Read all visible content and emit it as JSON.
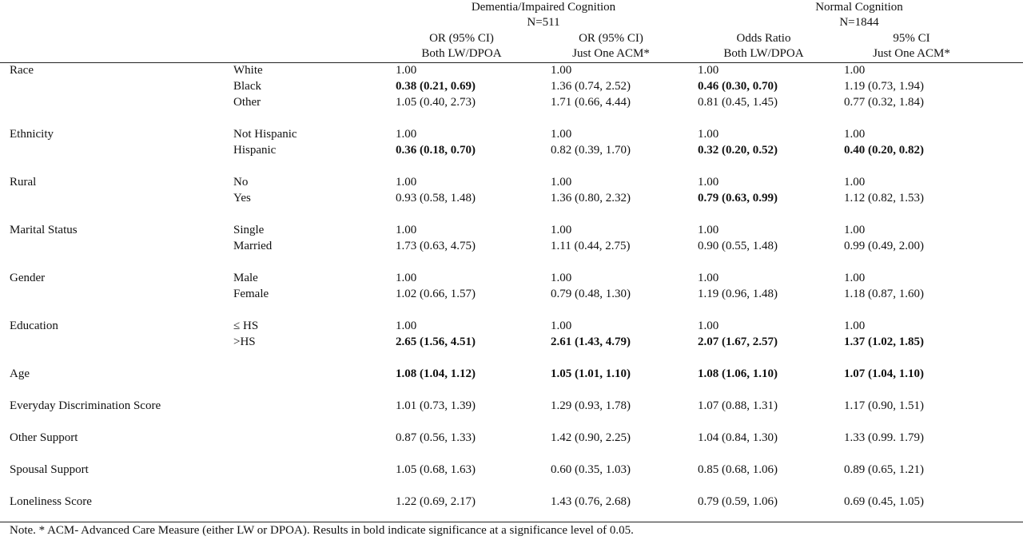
{
  "groups": [
    {
      "title": "Dementia/Impaired Cognition",
      "n": "N=511"
    },
    {
      "title": "Normal Cognition",
      "n": "N=1844"
    }
  ],
  "columns": [
    {
      "line1": "OR (95% CI)",
      "line2": "Both LW/DPOA"
    },
    {
      "line1": "OR (95% CI)",
      "line2": "Just One ACM*"
    },
    {
      "line1": "Odds Ratio",
      "line2": "Both LW/DPOA"
    },
    {
      "line1": "95% CI",
      "line2": "Just One ACM*"
    }
  ],
  "variables": [
    {
      "label": "Race",
      "levels": [
        {
          "label": "White",
          "values": [
            {
              "text": "1.00",
              "bold": false
            },
            {
              "text": "1.00",
              "bold": false
            },
            {
              "text": "1.00",
              "bold": false
            },
            {
              "text": "1.00",
              "bold": false
            }
          ]
        },
        {
          "label": "Black",
          "values": [
            {
              "text": "0.38 (0.21, 0.69)",
              "bold": true
            },
            {
              "text": "1.36 (0.74, 2.52)",
              "bold": false
            },
            {
              "text": "0.46 (0.30, 0.70)",
              "bold": true
            },
            {
              "text": "1.19 (0.73, 1.94)",
              "bold": false
            }
          ]
        },
        {
          "label": "Other",
          "values": [
            {
              "text": "1.05 (0.40, 2.73)",
              "bold": false
            },
            {
              "text": "1.71 (0.66, 4.44)",
              "bold": false
            },
            {
              "text": "0.81 (0.45, 1.45)",
              "bold": false
            },
            {
              "text": "0.77 (0.32, 1.84)",
              "bold": false
            }
          ]
        }
      ]
    },
    {
      "label": "Ethnicity",
      "levels": [
        {
          "label": "Not Hispanic",
          "values": [
            {
              "text": "1.00",
              "bold": false
            },
            {
              "text": "1.00",
              "bold": false
            },
            {
              "text": "1.00",
              "bold": false
            },
            {
              "text": "1.00",
              "bold": false
            }
          ]
        },
        {
          "label": "Hispanic",
          "values": [
            {
              "text": "0.36 (0.18, 0.70)",
              "bold": true
            },
            {
              "text": "0.82 (0.39, 1.70)",
              "bold": false
            },
            {
              "text": "0.32 (0.20, 0.52)",
              "bold": true
            },
            {
              "text": "0.40 (0.20, 0.82)",
              "bold": true
            }
          ]
        }
      ]
    },
    {
      "label": "Rural",
      "levels": [
        {
          "label": "No",
          "values": [
            {
              "text": "1.00",
              "bold": false
            },
            {
              "text": "1.00",
              "bold": false
            },
            {
              "text": "1.00",
              "bold": false
            },
            {
              "text": "1.00",
              "bold": false
            }
          ]
        },
        {
          "label": "Yes",
          "values": [
            {
              "text": "0.93 (0.58, 1.48)",
              "bold": false
            },
            {
              "text": "1.36 (0.80, 2.32)",
              "bold": false
            },
            {
              "text": "0.79 (0.63, 0.99)",
              "bold": true
            },
            {
              "text": "1.12 (0.82, 1.53)",
              "bold": false
            }
          ]
        }
      ]
    },
    {
      "label": "Marital Status",
      "levels": [
        {
          "label": "Single",
          "values": [
            {
              "text": "1.00",
              "bold": false
            },
            {
              "text": "1.00",
              "bold": false
            },
            {
              "text": "1.00",
              "bold": false
            },
            {
              "text": "1.00",
              "bold": false
            }
          ]
        },
        {
          "label": "Married",
          "values": [
            {
              "text": "1.73 (0.63, 4.75)",
              "bold": false
            },
            {
              "text": "1.11 (0.44, 2.75)",
              "bold": false
            },
            {
              "text": "0.90 (0.55, 1.48)",
              "bold": false
            },
            {
              "text": "0.99 (0.49, 2.00)",
              "bold": false
            }
          ]
        }
      ]
    },
    {
      "label": "Gender",
      "levels": [
        {
          "label": "Male",
          "values": [
            {
              "text": "1.00",
              "bold": false
            },
            {
              "text": "1.00",
              "bold": false
            },
            {
              "text": "1.00",
              "bold": false
            },
            {
              "text": "1.00",
              "bold": false
            }
          ]
        },
        {
          "label": "Female",
          "values": [
            {
              "text": "1.02 (0.66, 1.57)",
              "bold": false
            },
            {
              "text": "0.79 (0.48, 1.30)",
              "bold": false
            },
            {
              "text": "1.19 (0.96, 1.48)",
              "bold": false
            },
            {
              "text": "1.18 (0.87, 1.60)",
              "bold": false
            }
          ]
        }
      ]
    },
    {
      "label": "Education",
      "levels": [
        {
          "label": "≤ HS",
          "values": [
            {
              "text": "1.00",
              "bold": false
            },
            {
              "text": "1.00",
              "bold": false
            },
            {
              "text": "1.00",
              "bold": false
            },
            {
              "text": "1.00",
              "bold": false
            }
          ]
        },
        {
          "label": ">HS",
          "values": [
            {
              "text": "2.65 (1.56, 4.51)",
              "bold": true
            },
            {
              "text": "2.61 (1.43, 4.79)",
              "bold": true
            },
            {
              "text": "2.07 (1.67, 2.57)",
              "bold": true
            },
            {
              "text": "1.37 (1.02, 1.85)",
              "bold": true
            }
          ]
        }
      ]
    },
    {
      "label": "Age",
      "levels": [
        {
          "label": "",
          "values": [
            {
              "text": "1.08 (1.04, 1.12)",
              "bold": true
            },
            {
              "text": "1.05 (1.01, 1.10)",
              "bold": true
            },
            {
              "text": "1.08 (1.06, 1.10)",
              "bold": true
            },
            {
              "text": "1.07 (1.04, 1.10)",
              "bold": true
            }
          ]
        }
      ]
    },
    {
      "label": "Everyday Discrimination Score",
      "levels": [
        {
          "label": "",
          "values": [
            {
              "text": "1.01 (0.73, 1.39)",
              "bold": false
            },
            {
              "text": "1.29 (0.93, 1.78)",
              "bold": false
            },
            {
              "text": "1.07 (0.88, 1.31)",
              "bold": false
            },
            {
              "text": "1.17 (0.90, 1.51)",
              "bold": false
            }
          ]
        }
      ]
    },
    {
      "label": "Other Support",
      "levels": [
        {
          "label": "",
          "values": [
            {
              "text": "0.87 (0.56, 1.33)",
              "bold": false
            },
            {
              "text": "1.42 (0.90, 2.25)",
              "bold": false
            },
            {
              "text": "1.04 (0.84, 1.30)",
              "bold": false
            },
            {
              "text": "1.33 (0.99. 1.79)",
              "bold": false
            }
          ]
        }
      ]
    },
    {
      "label": "Spousal Support",
      "levels": [
        {
          "label": "",
          "values": [
            {
              "text": "1.05 (0.68, 1.63)",
              "bold": false
            },
            {
              "text": "0.60 (0.35, 1.03)",
              "bold": false
            },
            {
              "text": "0.85 (0.68, 1.06)",
              "bold": false
            },
            {
              "text": "0.89 (0.65, 1.21)",
              "bold": false
            }
          ]
        }
      ]
    },
    {
      "label": "Loneliness Score",
      "levels": [
        {
          "label": "",
          "values": [
            {
              "text": "1.22 (0.69, 2.17)",
              "bold": false
            },
            {
              "text": "1.43 (0.76, 2.68)",
              "bold": false
            },
            {
              "text": "0.79 (0.59, 1.06)",
              "bold": false
            },
            {
              "text": "0.69 (0.45, 1.05)",
              "bold": false
            }
          ]
        }
      ]
    }
  ],
  "note": "Note. * ACM- Advanced Care Measure (either LW or DPOA). Results in bold indicate significance at a significance level of 0.05."
}
